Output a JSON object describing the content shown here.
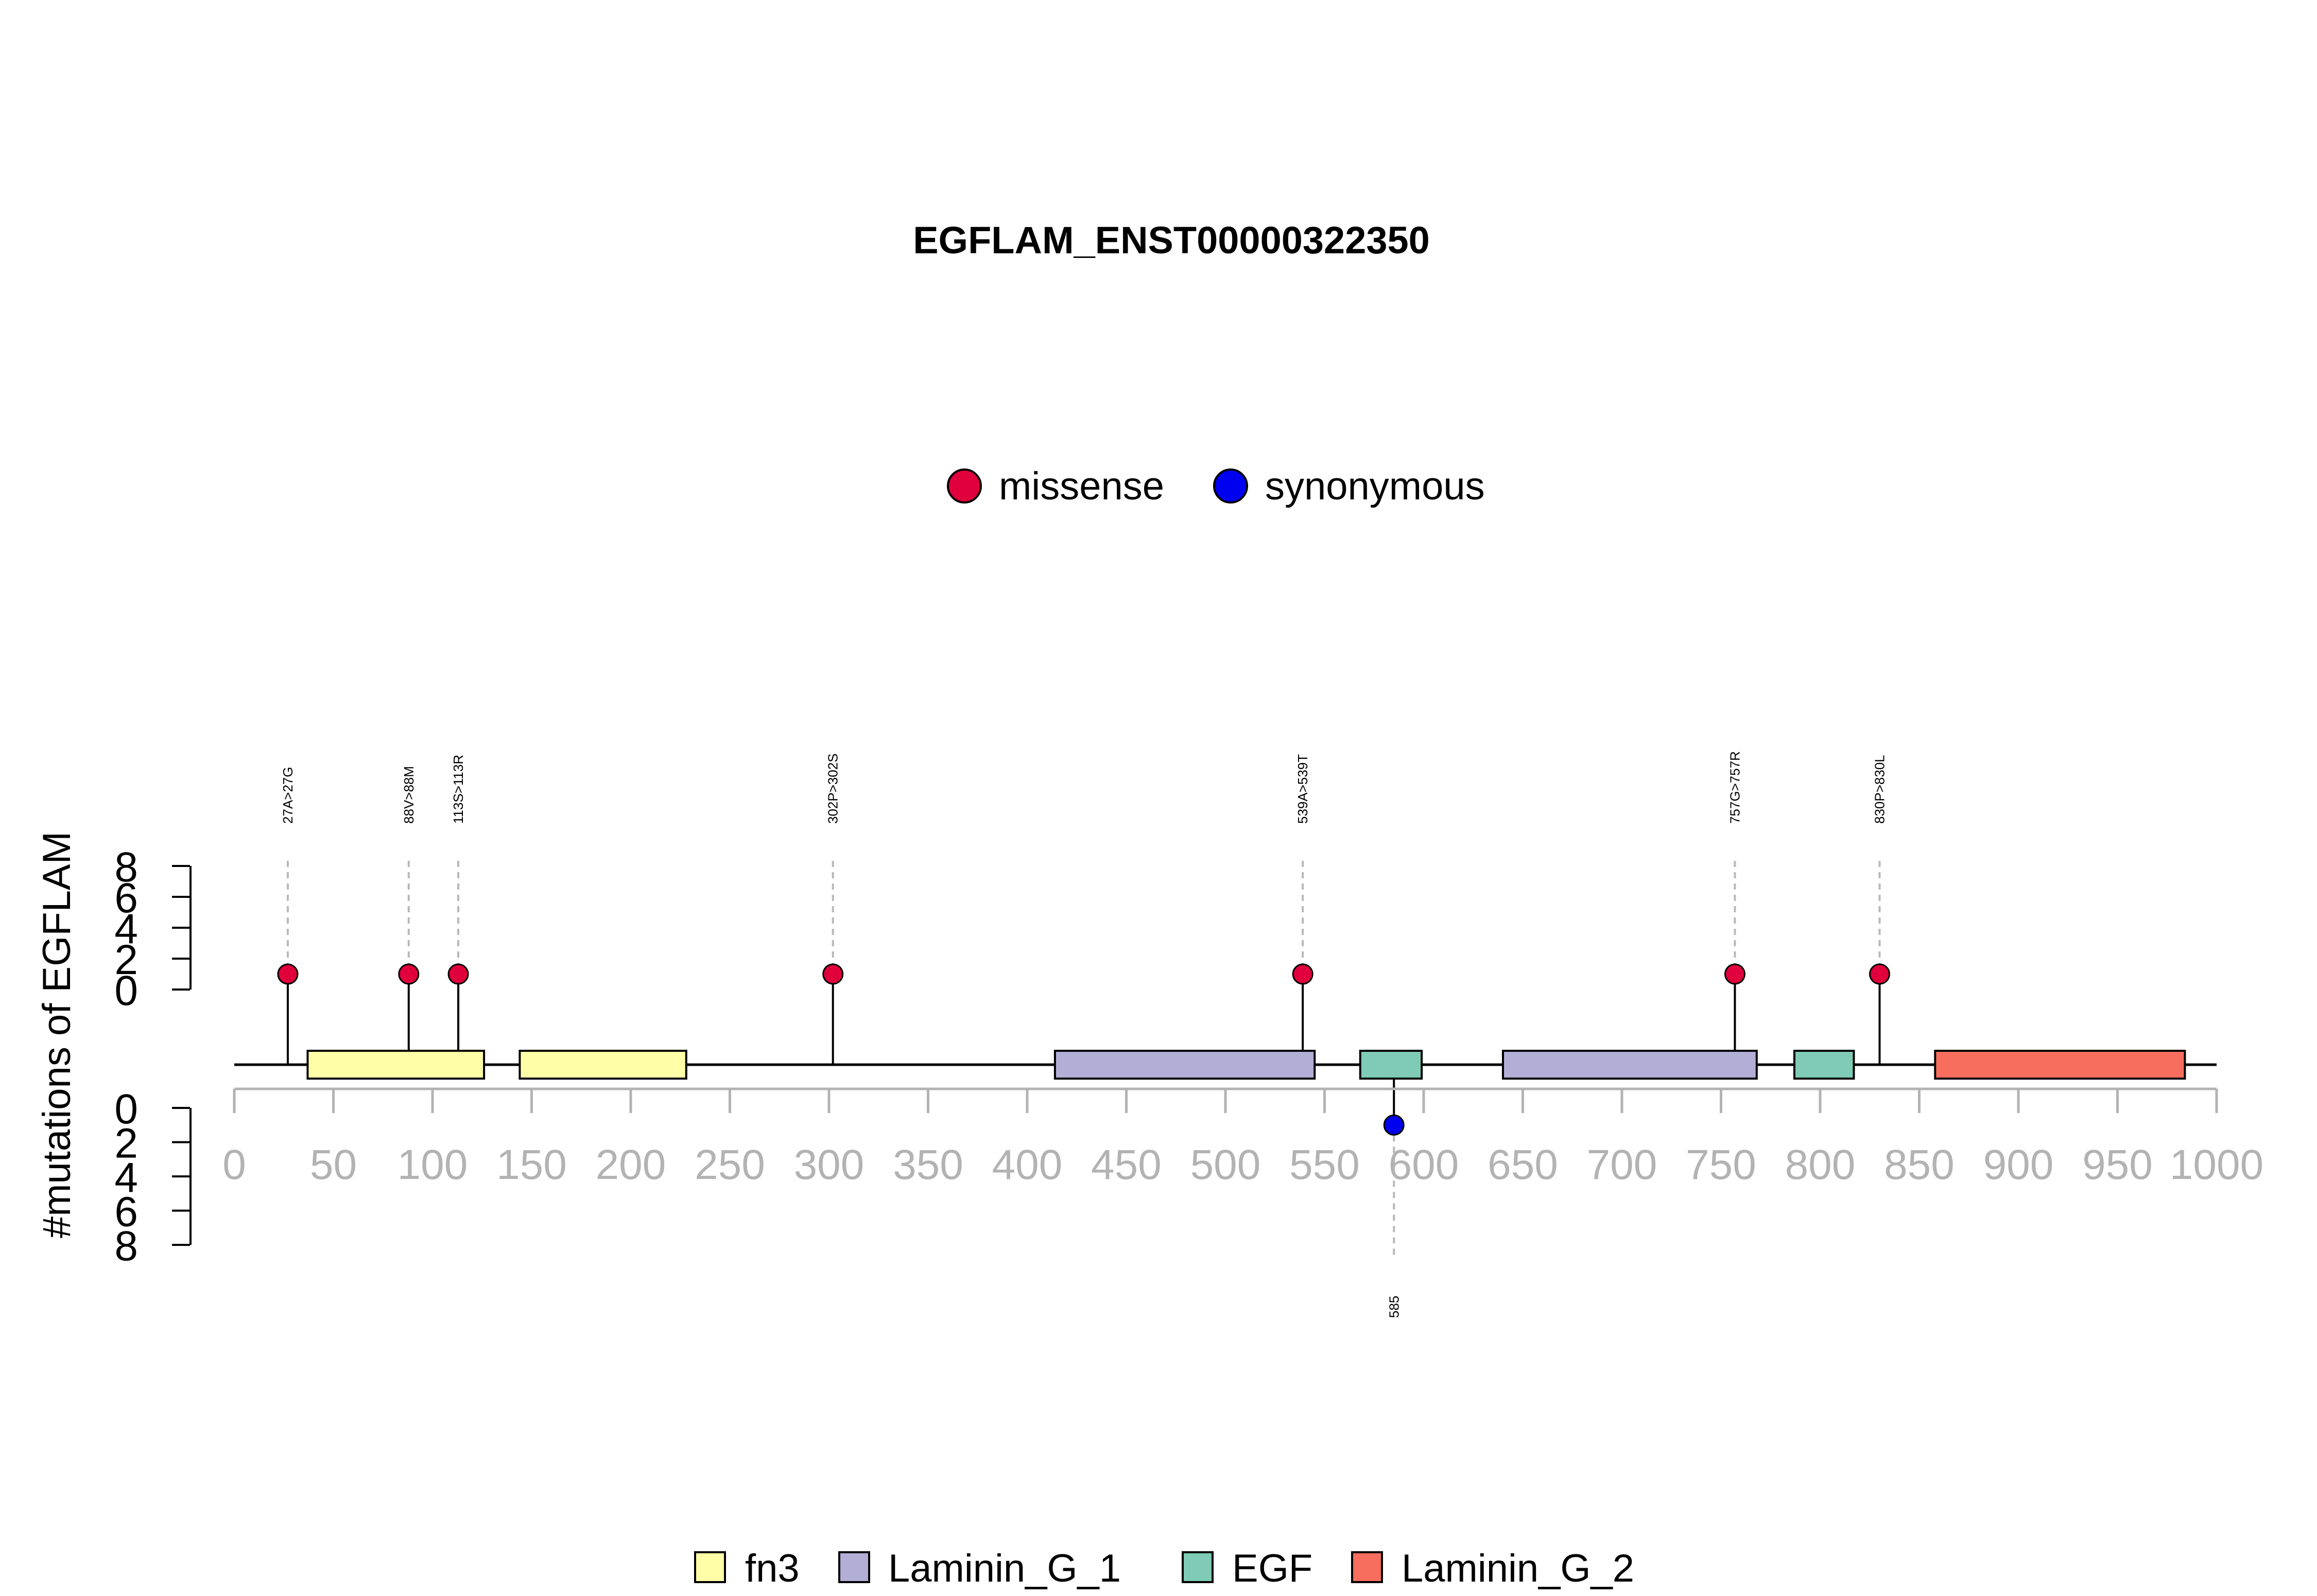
{
  "chart_data": {
    "type": "lollipop",
    "title": "EGFLAM_ENST00000322350",
    "ylabel": "#mutations of EGFLAM",
    "xlim": [
      0,
      1000
    ],
    "x_ticks": [
      0,
      50,
      100,
      150,
      200,
      250,
      300,
      350,
      400,
      450,
      500,
      550,
      600,
      650,
      700,
      750,
      800,
      850,
      900,
      950,
      1000
    ],
    "count_ticks": [
      "0",
      "2",
      "4",
      "6",
      "8"
    ],
    "mutation_types": [
      {
        "name": "missense",
        "color": "#E0003C"
      },
      {
        "name": "synonymous",
        "color": "#0000F0"
      }
    ],
    "mutations": [
      {
        "position": 27,
        "label": "27A>27G",
        "count": 1,
        "type": "missense",
        "side": "top"
      },
      {
        "position": 88,
        "label": "88V>88M",
        "count": 1,
        "type": "missense",
        "side": "top"
      },
      {
        "position": 113,
        "label": "113S>113R",
        "count": 1,
        "type": "missense",
        "side": "top"
      },
      {
        "position": 302,
        "label": "302P>302S",
        "count": 1,
        "type": "missense",
        "side": "top"
      },
      {
        "position": 539,
        "label": "539A>539T",
        "count": 1,
        "type": "missense",
        "side": "top"
      },
      {
        "position": 757,
        "label": "757G>757R",
        "count": 1,
        "type": "missense",
        "side": "top"
      },
      {
        "position": 830,
        "label": "830P>830L",
        "count": 1,
        "type": "missense",
        "side": "top"
      },
      {
        "position": 585,
        "label": "585",
        "count": 1,
        "type": "synonymous",
        "side": "bottom"
      }
    ],
    "domain_types": [
      {
        "name": "fn3",
        "color": "#FFFFA8"
      },
      {
        "name": "Laminin_G_1",
        "color": "#B3AED6"
      },
      {
        "name": "EGF",
        "color": "#7FCBB5"
      },
      {
        "name": "Laminin_G_2",
        "color": "#F76E5E"
      }
    ],
    "domains": [
      {
        "name": "fn3",
        "start": 37,
        "end": 126
      },
      {
        "name": "fn3",
        "start": 144,
        "end": 228
      },
      {
        "name": "Laminin_G_1",
        "start": 414,
        "end": 545
      },
      {
        "name": "EGF",
        "start": 568,
        "end": 599
      },
      {
        "name": "Laminin_G_1",
        "start": 640,
        "end": 768
      },
      {
        "name": "EGF",
        "start": 787,
        "end": 817
      },
      {
        "name": "Laminin_G_2",
        "start": 858,
        "end": 984
      }
    ]
  }
}
